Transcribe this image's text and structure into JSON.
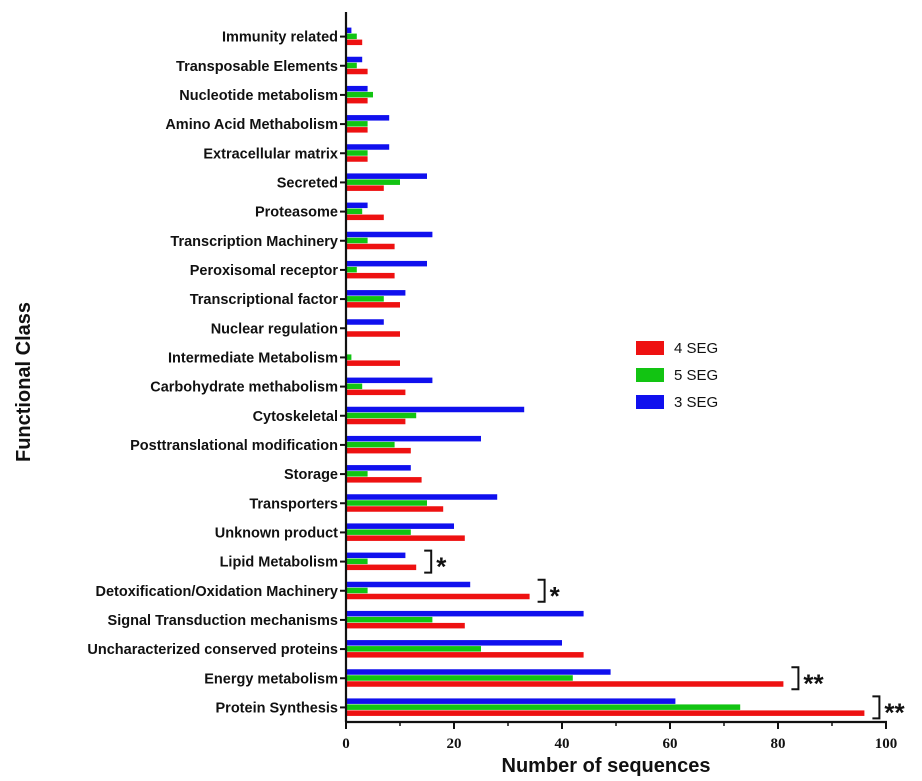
{
  "chart_data": {
    "type": "bar",
    "orientation": "horizontal",
    "title": "",
    "xlabel": "Number of sequences",
    "ylabel": "Functional Class",
    "xlim": [
      0,
      100
    ],
    "xticks": [
      0,
      20,
      40,
      60,
      80,
      100
    ],
    "grid": false,
    "legend_position": "right-center",
    "categories": [
      "Immunity related",
      "Transposable Elements",
      "Nucleotide metabolism",
      "Amino Acid Methabolism",
      "Extracellular matrix",
      "Secreted",
      "Proteasome",
      "Transcription Machinery",
      "Peroxisomal receptor",
      "Transcriptional factor",
      "Nuclear regulation",
      "Intermediate Metabolism",
      "Carbohydrate methabolism",
      "Cytoskeletal",
      "Posttranslational modification",
      "Storage",
      "Transporters",
      "Unknown product",
      "Lipid Metabolism",
      "Detoxification/Oxidation Machinery",
      "Signal Transduction mechanisms",
      "Uncharacterized conserved proteins",
      "Energy metabolism",
      "Protein Synthesis"
    ],
    "series": [
      {
        "name": "3 SEG",
        "color": "#1010ee",
        "values": [
          1,
          3,
          4,
          8,
          8,
          15,
          4,
          16,
          15,
          11,
          7,
          0,
          16,
          33,
          25,
          12,
          28,
          20,
          11,
          23,
          44,
          40,
          49,
          61
        ]
      },
      {
        "name": "5 SEG",
        "color": "#12c412",
        "values": [
          2,
          2,
          5,
          4,
          4,
          10,
          3,
          4,
          2,
          7,
          0,
          1,
          3,
          13,
          9,
          4,
          15,
          12,
          4,
          4,
          16,
          25,
          42,
          73
        ]
      },
      {
        "name": "4 SEG",
        "color": "#ee1111",
        "values": [
          3,
          4,
          4,
          4,
          4,
          7,
          7,
          9,
          9,
          10,
          10,
          10,
          11,
          11,
          12,
          14,
          18,
          22,
          13,
          34,
          22,
          44,
          81,
          96
        ]
      }
    ],
    "legend_order": [
      "4 SEG",
      "5 SEG",
      "3 SEG"
    ],
    "annotations": [
      {
        "category": "Lipid Metabolism",
        "text": "*"
      },
      {
        "category": "Detoxification/Oxidation Machinery",
        "text": "*"
      },
      {
        "category": "Energy metabolism",
        "text": "**"
      },
      {
        "category": "Protein Synthesis",
        "text": "**"
      }
    ]
  }
}
